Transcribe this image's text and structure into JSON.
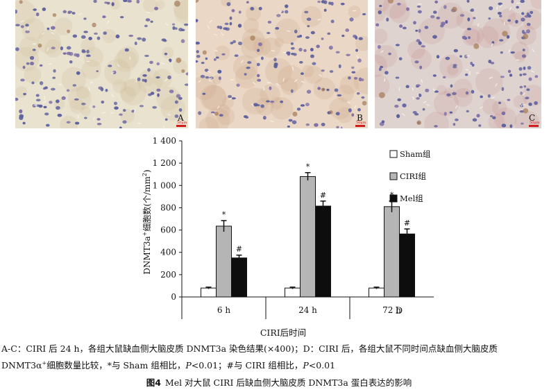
{
  "panels": [
    {
      "letter": "A",
      "bg": "#e9e2cf",
      "tint": "#c9b48a",
      "scale_text": "50μm"
    },
    {
      "letter": "B",
      "bg": "#ead7c5",
      "tint": "#c59a78",
      "scale_text": "50μm"
    },
    {
      "letter": "C",
      "bg": "#dfd3cf",
      "tint": "#c48585",
      "scale_text": "50μm"
    }
  ],
  "chart_data": {
    "type": "bar",
    "categories": [
      "6 h",
      "24 h",
      "72 h"
    ],
    "series": [
      {
        "name": "Sham组",
        "color": "#ffffff",
        "values": [
          80,
          80,
          80
        ],
        "errors": [
          8,
          8,
          8
        ],
        "marker": ""
      },
      {
        "name": "CIRI组",
        "color": "#b5b5b5",
        "values": [
          635,
          1080,
          810
        ],
        "errors": [
          50,
          35,
          50
        ],
        "marker": "*"
      },
      {
        "name": "Mel组",
        "color": "#0d0d0d",
        "values": [
          350,
          815,
          565
        ],
        "errors": [
          25,
          45,
          45
        ],
        "marker": "#"
      }
    ],
    "ylabel_main": "DNMT3a",
    "ylabel_sup": "+",
    "ylabel_rest": "细胞数(个/mm",
    "ylabel_sup2": "2",
    "ylabel_end": ")",
    "xlabel": "CIRI后时间",
    "ylim": [
      0,
      1400
    ],
    "yticks": [
      0,
      200,
      400,
      600,
      800,
      "1 000",
      "1 200",
      "1 400"
    ],
    "yticks_values": [
      0,
      200,
      400,
      600,
      800,
      1000,
      1200,
      1400
    ],
    "panel_letter": "D",
    "legend_position": "right"
  },
  "caption": {
    "line1": "A-C：CIRI 后 24 h，各组大鼠缺血侧大脑皮质 DNMT3a 染色结果(×400)；D：CIRI 后，各组大鼠不同时间点缺血侧大脑皮质",
    "line2_a": "DNMT3α",
    "line2_sup": "+",
    "line2_b": "细胞数量比较，*与 Sham 组相比，",
    "line2_p1": "P",
    "line2_c": "<0.01；#与 CIRI 组相比，",
    "line2_p2": "P",
    "line2_d": "<0.01"
  },
  "figure": {
    "label": "图4",
    "title": "Mel 对大鼠 CIRI 后缺血侧大脑皮质 DNMT3a 蛋白表达的影响"
  }
}
